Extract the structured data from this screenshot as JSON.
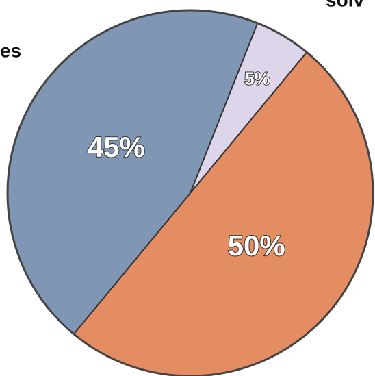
{
  "chart_data": {
    "type": "pie",
    "annotations": [
      "es",
      "solv"
    ],
    "values": [
      5,
      50,
      45
    ],
    "value_labels": [
      "5%",
      "50%",
      "45%"
    ],
    "colors": [
      "#ddd6ea",
      "#e48c62",
      "#7f97b4"
    ]
  }
}
